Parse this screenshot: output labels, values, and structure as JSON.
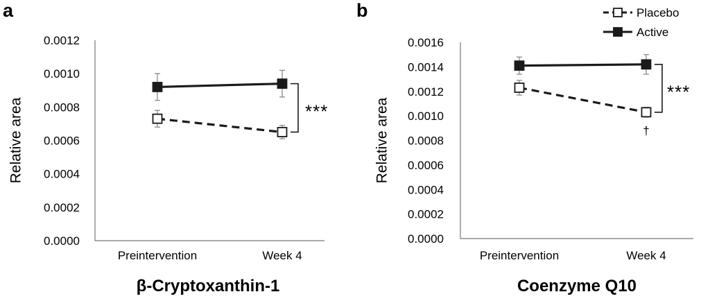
{
  "chart_data": [
    {
      "type": "line",
      "panel_label": "a",
      "title": "β-Cryptoxanthin-1",
      "xlabel": "",
      "ylabel": "Relative area",
      "ylim": [
        0,
        0.0012
      ],
      "yticks": [
        "0.0000",
        "0.0002",
        "0.0004",
        "0.0006",
        "0.0008",
        "0.0010",
        "0.0012"
      ],
      "categories": [
        "Preintervention",
        "Week 4"
      ],
      "series": [
        {
          "name": "Active",
          "marker": "filled-square",
          "line": "solid",
          "values": [
            0.00092,
            0.00094
          ],
          "error": [
            8e-05,
            8e-05
          ]
        },
        {
          "name": "Placebo",
          "marker": "open-square",
          "line": "dashed",
          "values": [
            0.00073,
            0.00065
          ],
          "error": [
            5e-05,
            4e-05
          ]
        }
      ],
      "annotations": [
        {
          "text": "***",
          "between_series": true,
          "at": "Week 4"
        }
      ],
      "grid": false
    },
    {
      "type": "line",
      "panel_label": "b",
      "title": "Coenzyme Q10",
      "xlabel": "",
      "ylabel": "Relative area",
      "ylim": [
        0,
        0.0016
      ],
      "yticks": [
        "0.0000",
        "0.0002",
        "0.0004",
        "0.0006",
        "0.0008",
        "0.0010",
        "0.0012",
        "0.0014",
        "0.0016"
      ],
      "categories": [
        "Preintervention",
        "Week 4"
      ],
      "series": [
        {
          "name": "Active",
          "marker": "filled-square",
          "line": "solid",
          "values": [
            0.00141,
            0.00142
          ],
          "error": [
            7e-05,
            8e-05
          ]
        },
        {
          "name": "Placebo",
          "marker": "open-square",
          "line": "dashed",
          "values": [
            0.00123,
            0.00103
          ],
          "error": [
            6e-05,
            4e-05
          ]
        }
      ],
      "annotations": [
        {
          "text": "***",
          "between_series": true,
          "at": "Week 4"
        },
        {
          "text": "†",
          "series": "Placebo",
          "at": "Week 4"
        }
      ],
      "legend": {
        "position": "top-right",
        "entries": [
          "Placebo",
          "Active"
        ]
      },
      "grid": false
    }
  ]
}
